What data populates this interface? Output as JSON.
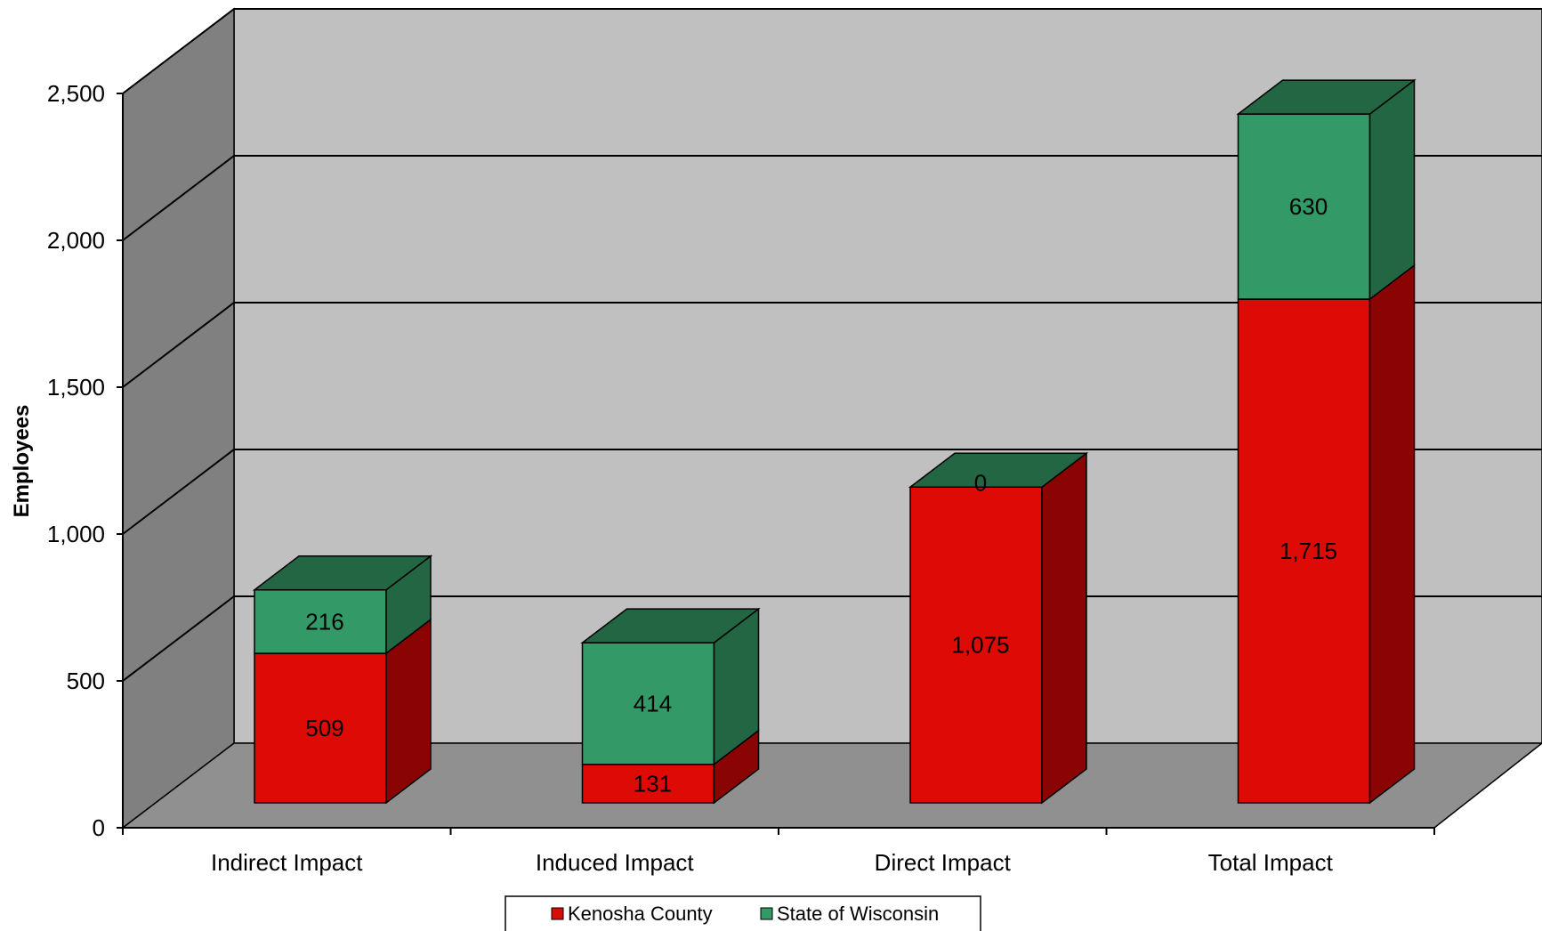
{
  "chart_data": {
    "type": "bar",
    "stacked": true,
    "three_d": true,
    "title": "",
    "xlabel": "",
    "ylabel": "Employees",
    "ylim": [
      0,
      2500
    ],
    "yticks": [
      0,
      500,
      1000,
      1500,
      2000,
      2500
    ],
    "ytick_labels": [
      "0",
      "500",
      "1,000",
      "1,500",
      "2,000",
      "2,500"
    ],
    "grid": true,
    "legend": "bottom",
    "categories": [
      "Indirect Impact",
      "Induced Impact",
      "Direct Impact",
      "Total Impact"
    ],
    "series": [
      {
        "name": "Kenosha County",
        "values": [
          509,
          131,
          1075,
          1715
        ],
        "labels": [
          "509",
          "131",
          "1,075",
          "1,715"
        ],
        "color": "#dd0a06",
        "side_color": "#8a0403"
      },
      {
        "name": "State of Wisconsin",
        "values": [
          216,
          414,
          0,
          630
        ],
        "labels": [
          "216",
          "414",
          "0",
          "630"
        ],
        "color": "#339966",
        "side_color": "#226644"
      }
    ],
    "wall_color": "#c0c0c0",
    "side_wall_color": "#808080",
    "floor_color": "#909090"
  }
}
